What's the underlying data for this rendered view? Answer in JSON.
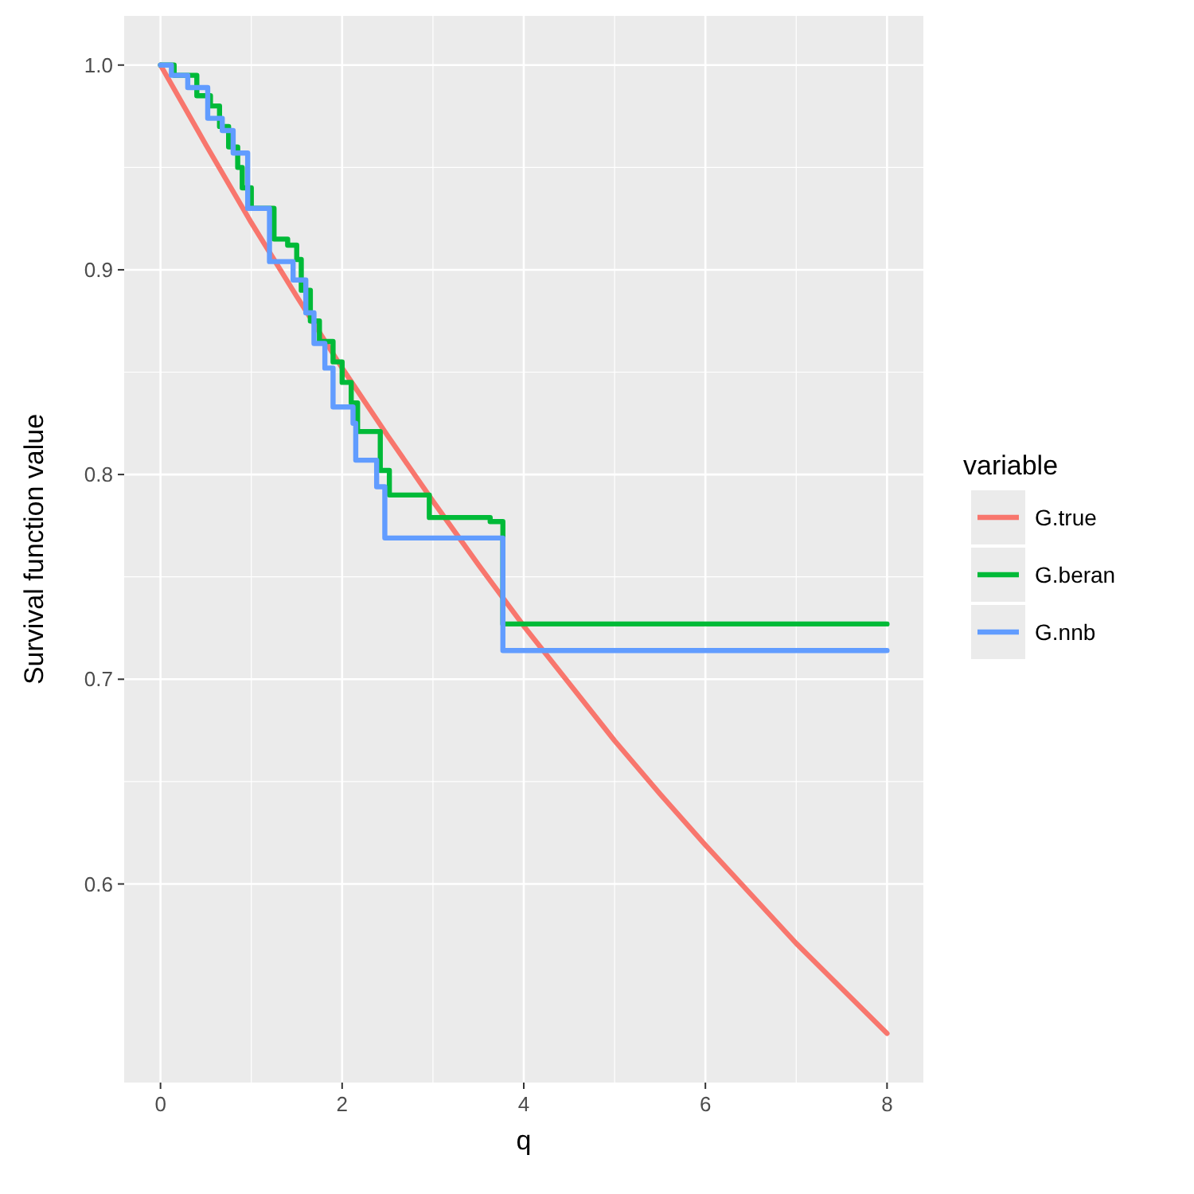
{
  "chart_data": {
    "type": "line",
    "xlabel": "q",
    "ylabel": "Survival function value",
    "legend_title": "variable",
    "legend": "right",
    "grid": true,
    "xlim": [
      -0.4,
      8.4
    ],
    "xticks": [
      0,
      2,
      4,
      6,
      8
    ],
    "ylim": [
      0.503,
      1.024
    ],
    "yticks": [
      0.6,
      0.7,
      0.8,
      0.9,
      {
        "value": 1,
        "label": "1.0"
      }
    ],
    "series": [
      {
        "name": "G.true",
        "color": "#f8766d",
        "x": [
          0,
          0.5,
          1,
          1.5,
          2,
          2.5,
          3,
          3.5,
          4,
          4.5,
          5,
          5.5,
          6,
          6.5,
          7,
          7.5,
          8
        ],
        "values": [
          1,
          0.961,
          0.923,
          0.887,
          0.852,
          0.819,
          0.787,
          0.756,
          0.726,
          0.698,
          0.67,
          0.644,
          0.619,
          0.595,
          0.571,
          0.549,
          0.527
        ]
      },
      {
        "name": "G.beran",
        "color": "#00ba38",
        "type": "step",
        "x": [
          0,
          0.15,
          0.4,
          0.55,
          0.65,
          0.75,
          0.85,
          0.9,
          1.0,
          1.25,
          1.4,
          1.5,
          1.55,
          1.65,
          1.75,
          1.9,
          2.0,
          2.1,
          2.17,
          2.42,
          2.52,
          2.96,
          3.63,
          3.77,
          8
        ],
        "values": [
          1,
          0.995,
          0.985,
          0.98,
          0.97,
          0.96,
          0.95,
          0.94,
          0.93,
          0.915,
          0.912,
          0.905,
          0.89,
          0.875,
          0.865,
          0.855,
          0.845,
          0.835,
          0.821,
          0.802,
          0.79,
          0.779,
          0.777,
          0.727,
          0.727
        ]
      },
      {
        "name": "G.nnb",
        "color": "#619cff",
        "type": "step",
        "x": [
          0,
          0.12,
          0.3,
          0.52,
          0.68,
          0.8,
          0.96,
          1.2,
          1.46,
          1.6,
          1.69,
          1.81,
          1.9,
          2.12,
          2.15,
          2.38,
          2.47,
          3.77,
          8
        ],
        "values": [
          1,
          0.995,
          0.989,
          0.974,
          0.968,
          0.957,
          0.93,
          0.904,
          0.895,
          0.879,
          0.864,
          0.852,
          0.833,
          0.825,
          0.807,
          0.794,
          0.769,
          0.714,
          0.714
        ]
      }
    ]
  }
}
